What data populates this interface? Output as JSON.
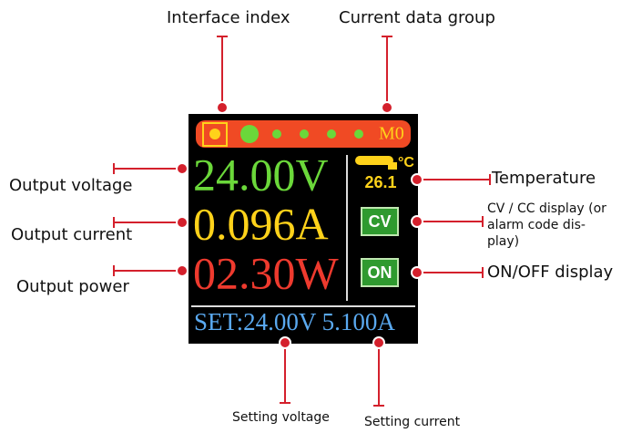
{
  "screen": {
    "group_label": "M0",
    "voltage": "24.00V",
    "current": "0.096A",
    "power": "02.30W",
    "temperature_unit": "°C",
    "temperature": "26.1",
    "mode": "CV",
    "output_state": "ON",
    "setting": "SET:24.00V 5.100A"
  },
  "callouts": {
    "interface_index": "Interface index",
    "current_data_group": "Current data group",
    "output_voltage": "Output voltage",
    "output_current": "Output current",
    "output_power": "Output power",
    "temperature": "Temperature",
    "cv_cc_display": [
      "CV / CC display (or",
      "alarm code dis-",
      "play)"
    ],
    "on_off_display": "ON/OFF display",
    "setting_voltage": "Setting voltage",
    "setting_current": "Setting current"
  }
}
